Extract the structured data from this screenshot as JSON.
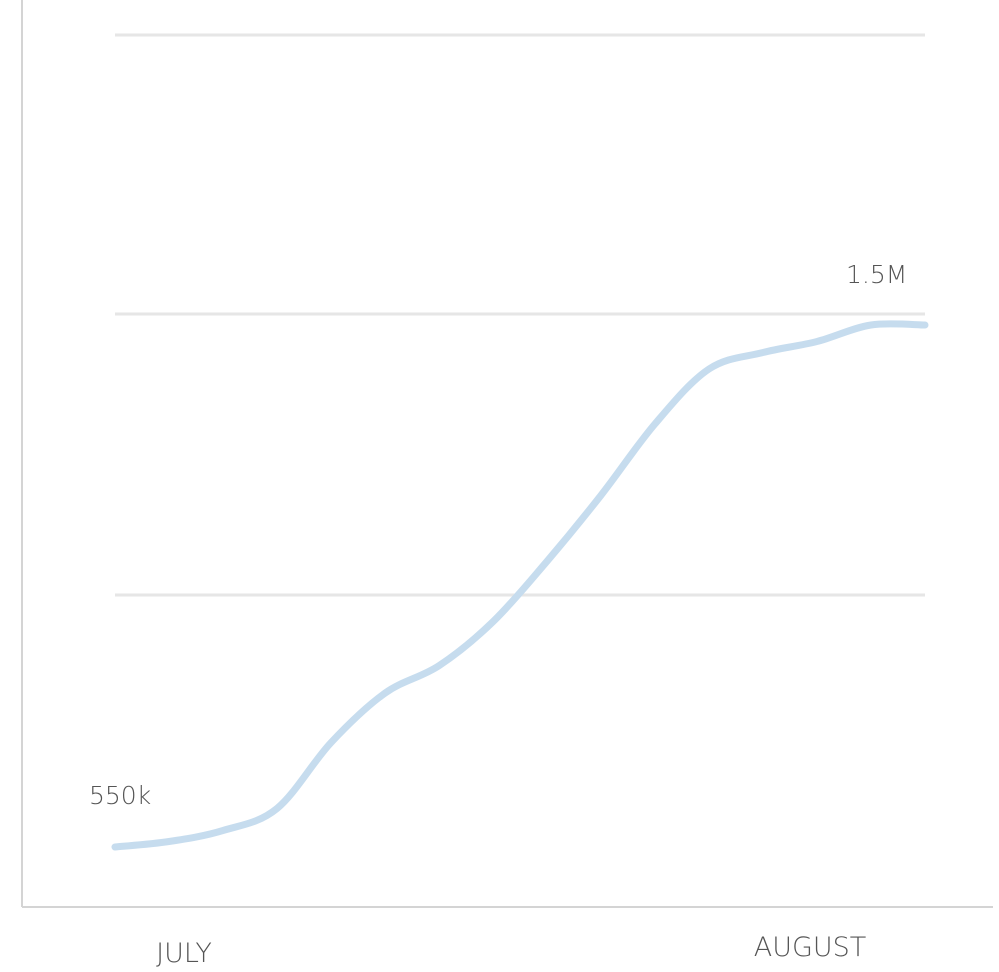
{
  "chart_data": {
    "type": "line",
    "title": "",
    "xlabel": "",
    "ylabel": "",
    "x_tick_labels": [
      "JULY",
      "AUGUST"
    ],
    "grid": true,
    "series": [
      {
        "values": [
          550000,
          560000,
          580000,
          620000,
          740000,
          830000,
          880000,
          960000,
          1070000,
          1190000,
          1320000,
          1420000,
          1450000,
          1470000,
          1500000,
          1500000
        ]
      }
    ],
    "annotations": [
      {
        "text": "550k",
        "value": 550000,
        "point": "first"
      },
      {
        "text": "1.5M",
        "value": 1500000,
        "point": "last"
      }
    ],
    "colors": {
      "line": "#c6dcee",
      "grid": "#e6e6e6",
      "axis": "#d4d4d4",
      "text": "#555555"
    }
  }
}
